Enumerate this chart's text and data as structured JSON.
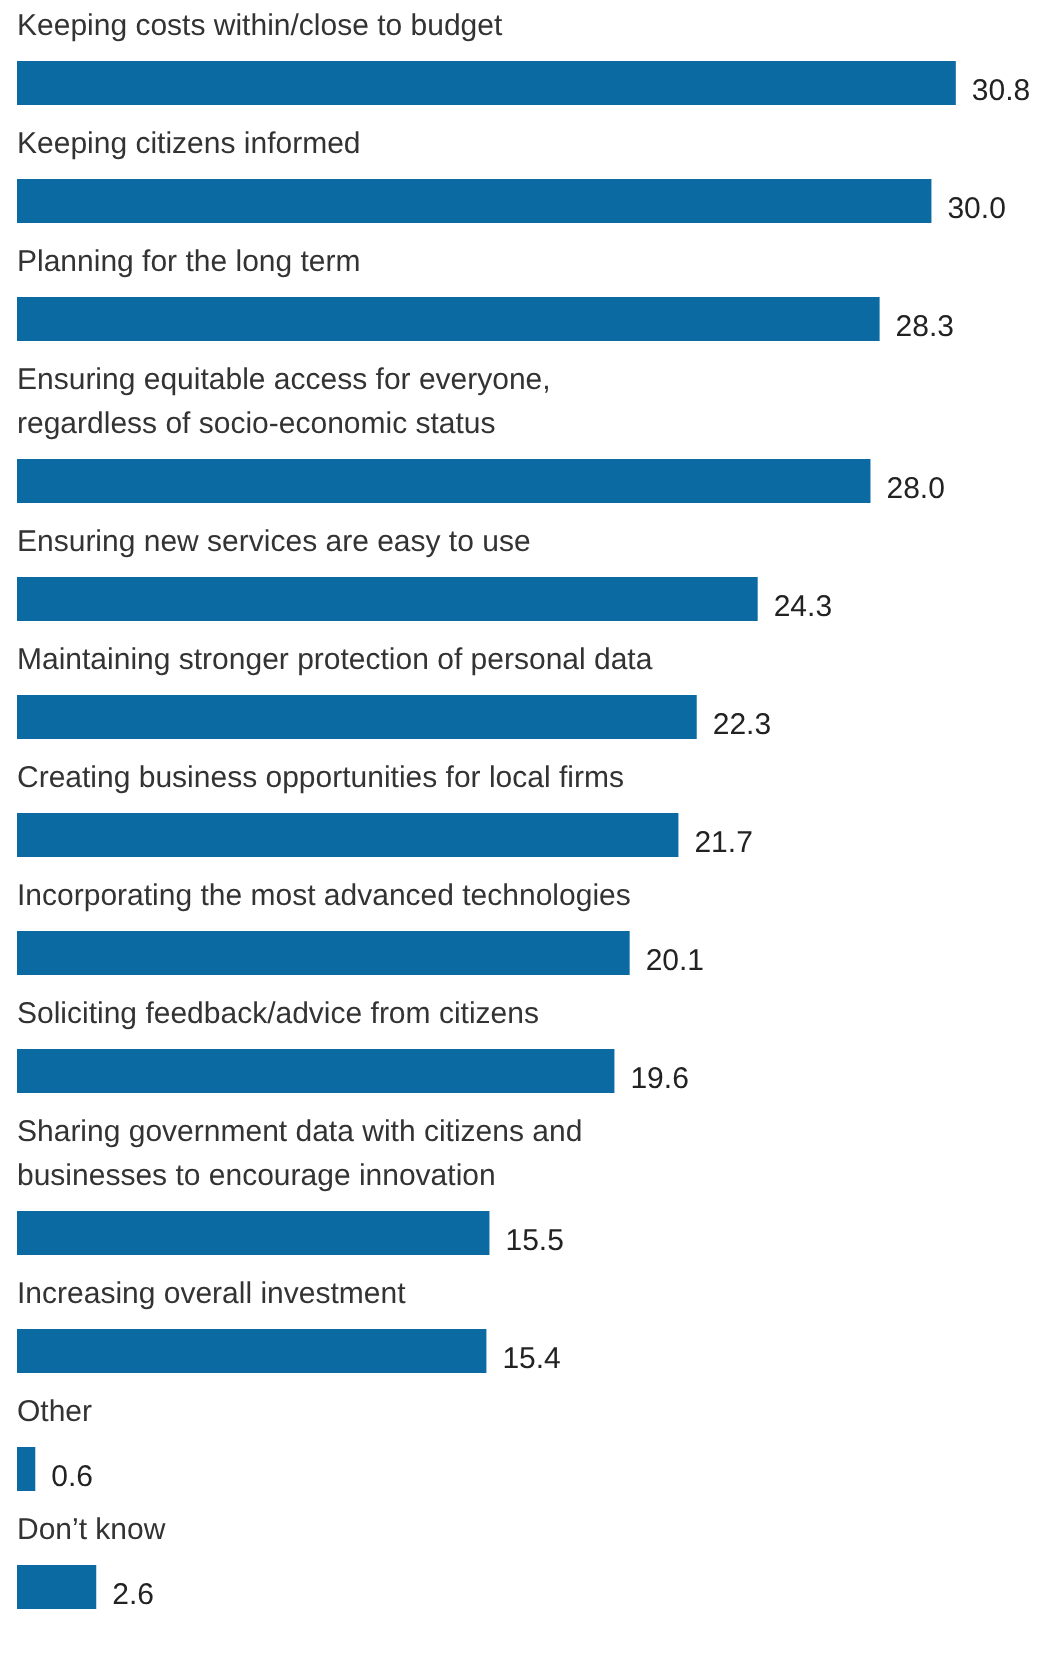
{
  "chart_data": {
    "type": "bar",
    "orientation": "horizontal",
    "categories": [
      "Keeping costs within/close to budget",
      "Keeping citizens informed",
      "Planning for the long term",
      "Ensuring equitable access for everyone,\nregardless of socio-economic status",
      "Ensuring new services are easy to use",
      "Maintaining stronger protection of personal data",
      "Creating business opportunities for local firms",
      "Incorporating the most advanced technologies",
      "Soliciting feedback/advice from citizens",
      "Sharing government data with citizens and\nbusinesses to encourage innovation",
      "Increasing overall investment",
      "Other",
      "Don’t know"
    ],
    "values": [
      30.8,
      30.0,
      28.3,
      28.0,
      24.3,
      22.3,
      21.7,
      20.1,
      19.6,
      15.5,
      15.4,
      0.6,
      2.6
    ],
    "value_labels": [
      "30.8",
      "30.0",
      "28.3",
      "28.0",
      "24.3",
      "22.3",
      "21.7",
      "20.1",
      "19.6",
      "15.5",
      "15.4",
      "0.6",
      "2.6"
    ],
    "color": "#0b6aa2"
  }
}
